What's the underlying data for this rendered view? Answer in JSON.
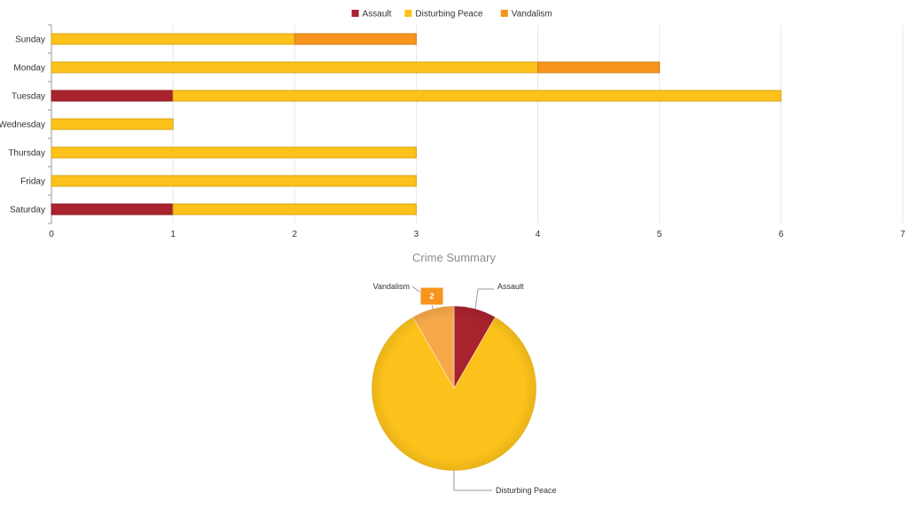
{
  "chart_data": [
    {
      "type": "bar",
      "orientation": "horizontal",
      "stacked": true,
      "categories": [
        "Sunday",
        "Monday",
        "Tuesday",
        "Wednesday",
        "Thursday",
        "Friday",
        "Saturday"
      ],
      "series": [
        {
          "name": "Assault",
          "color": "#a8232e",
          "values": [
            0,
            0,
            1,
            0,
            0,
            0,
            1
          ]
        },
        {
          "name": "Disturbing Peace",
          "color": "#fcc21b",
          "values": [
            2,
            4,
            5,
            1,
            3,
            3,
            2
          ]
        },
        {
          "name": "Vandalism",
          "color": "#f7941d",
          "values": [
            1,
            1,
            0,
            0,
            0,
            0,
            0
          ]
        }
      ],
      "xlim": [
        0,
        7
      ],
      "xticks": [
        "0",
        "1",
        "2",
        "3",
        "4",
        "5",
        "6",
        "7"
      ],
      "grid": true,
      "legend_position": "top-center"
    },
    {
      "type": "pie",
      "title": "Crime Summary",
      "slices": [
        {
          "label": "Assault",
          "value": 2,
          "color": "#a8232e"
        },
        {
          "label": "Disturbing Peace",
          "value": 20,
          "color": "#fcc21b"
        },
        {
          "label": "Vandalism",
          "value": 2,
          "color": "#f7a84a"
        }
      ],
      "badge": {
        "slice": "Vandalism",
        "text": "2",
        "color": "#f7941d"
      }
    }
  ]
}
